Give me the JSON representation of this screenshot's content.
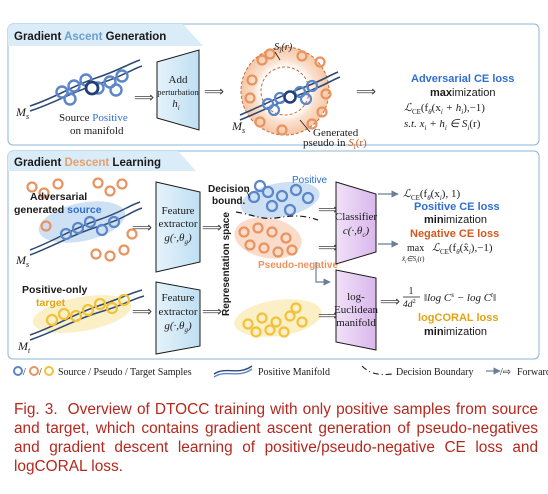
{
  "colors": {
    "source": "#5b86c9",
    "pseudo": "#e89460",
    "target": "#f3c23c",
    "positive": "#2f6fd0",
    "negative": "#d4571d",
    "header_bg": "#d9ecf7"
  },
  "ascent": {
    "title_a": "Gradient ",
    "title_b": "Ascent",
    "title_c": " Generation",
    "m_s": "M",
    "m_s_sub": "s",
    "src_pos_a": "Source ",
    "src_pos_b": "Positive",
    "src_pos_c": "on manifold",
    "add_box_1": "Add",
    "add_box_2": "perturbation",
    "add_box_3": "h",
    "add_box_3_sub": "i",
    "s_r": "S",
    "s_r_sub": "i",
    "s_r_arg": "(r)",
    "gen_1": "Generated",
    "gen_2": "pseudo in ",
    "gen_3": "S",
    "gen_3_sub": "i",
    "gen_3_arg": "(r)",
    "adv_loss_title": "Adversarial CE loss",
    "max_a": "max",
    "max_b": "imization",
    "formula_1": "ℒ",
    "formula_1_sub": "CE",
    "formula_1_rest": "(f",
    "formula_1_theta": "θ",
    "formula_1_tail": "(x",
    "formula_1_tail2": "i",
    "formula_1_tail3": " + h",
    "formula_1_tail4": "i",
    "formula_1_tail5": "),−1)",
    "formula_2": "s.t.   x",
    "formula_2_sub": "i",
    "formula_2_b": " + h",
    "formula_2_sub2": "i",
    "formula_2_c": " ∈ S",
    "formula_2_sub3": "i",
    "formula_2_d": "(r)"
  },
  "descent": {
    "title_a": "Gradient ",
    "title_b": "Descent",
    "title_c": " Learning",
    "adv_gen_1": "Adversarial",
    "adv_gen_2a": "generated ",
    "adv_gen_2b": "source",
    "m_s": "M",
    "m_s_sub": "s",
    "pos_only_1": "Positive-only",
    "pos_only_2": "target",
    "m_t": "M",
    "m_t_sub": "t",
    "fe_1": "Feature",
    "fe_2": "extractor",
    "fe_3": "g(·,θ",
    "fe_3_sub": "g",
    "fe_3_end": ")",
    "rep_space": "Representation space",
    "decision_1": "Decision",
    "decision_2": "bound.",
    "positive": "Positive",
    "pseudo_negative": "Pseudo-negative",
    "cls_1": "Classifier",
    "cls_2": "c(·,θ",
    "cls_2_sub": "c",
    "cls_2_end": ")",
    "log_1": "log-",
    "log_2": "Euclidean",
    "log_3": "manifold",
    "loss_pos_formula": "ℒ",
    "loss_pos_sub": "CE",
    "loss_pos_rest": "(f",
    "loss_pos_theta": "θ",
    "loss_pos_tail": "(x",
    "loss_pos_tail_sub": "i",
    "loss_pos_tail2": "), 1)",
    "pos_ce_title": "Positive CE loss",
    "min_a": "min",
    "min_b": "imization",
    "neg_ce_title": "Negative CE loss",
    "neg_max": "max",
    "neg_max_sub": "x̂",
    "neg_max_sub2": "i",
    "neg_max_sub3": "∈S",
    "neg_max_sub4": "i",
    "neg_max_sub5": "(r)",
    "neg_formula": "ℒ",
    "neg_formula_sub": "CE",
    "neg_formula_rest": "(f",
    "neg_formula_theta": "θ",
    "neg_formula_tail": "(x̂",
    "neg_formula_tail_sub": "i",
    "neg_formula_tail2": "),−1)",
    "coral_frac_num": "1",
    "coral_frac_den": "4d",
    "coral_frac_den_sup": "2",
    "coral_formula": "‖log C",
    "coral_formula_sup": "s",
    "coral_formula_b": " − log C",
    "coral_formula_sup2": "t",
    "coral_formula_c": "‖",
    "coral_title": "logCORAL loss",
    "coral_min_a": "min",
    "coral_min_b": "imization"
  },
  "legend": {
    "samples": "Source / Pseudo / Target Samples",
    "manifold": "Positive Manifold",
    "boundary": "Decision Boundary",
    "forward": "Forward"
  },
  "caption": {
    "fig_num": "Fig. 3.",
    "text": "Overview of DTOCC training with only positive samples from source and target, which contains gradient ascent generation of pseudo-negatives and gradient descent learning of positive/pseudo-negative CE loss and logCORAL loss."
  }
}
